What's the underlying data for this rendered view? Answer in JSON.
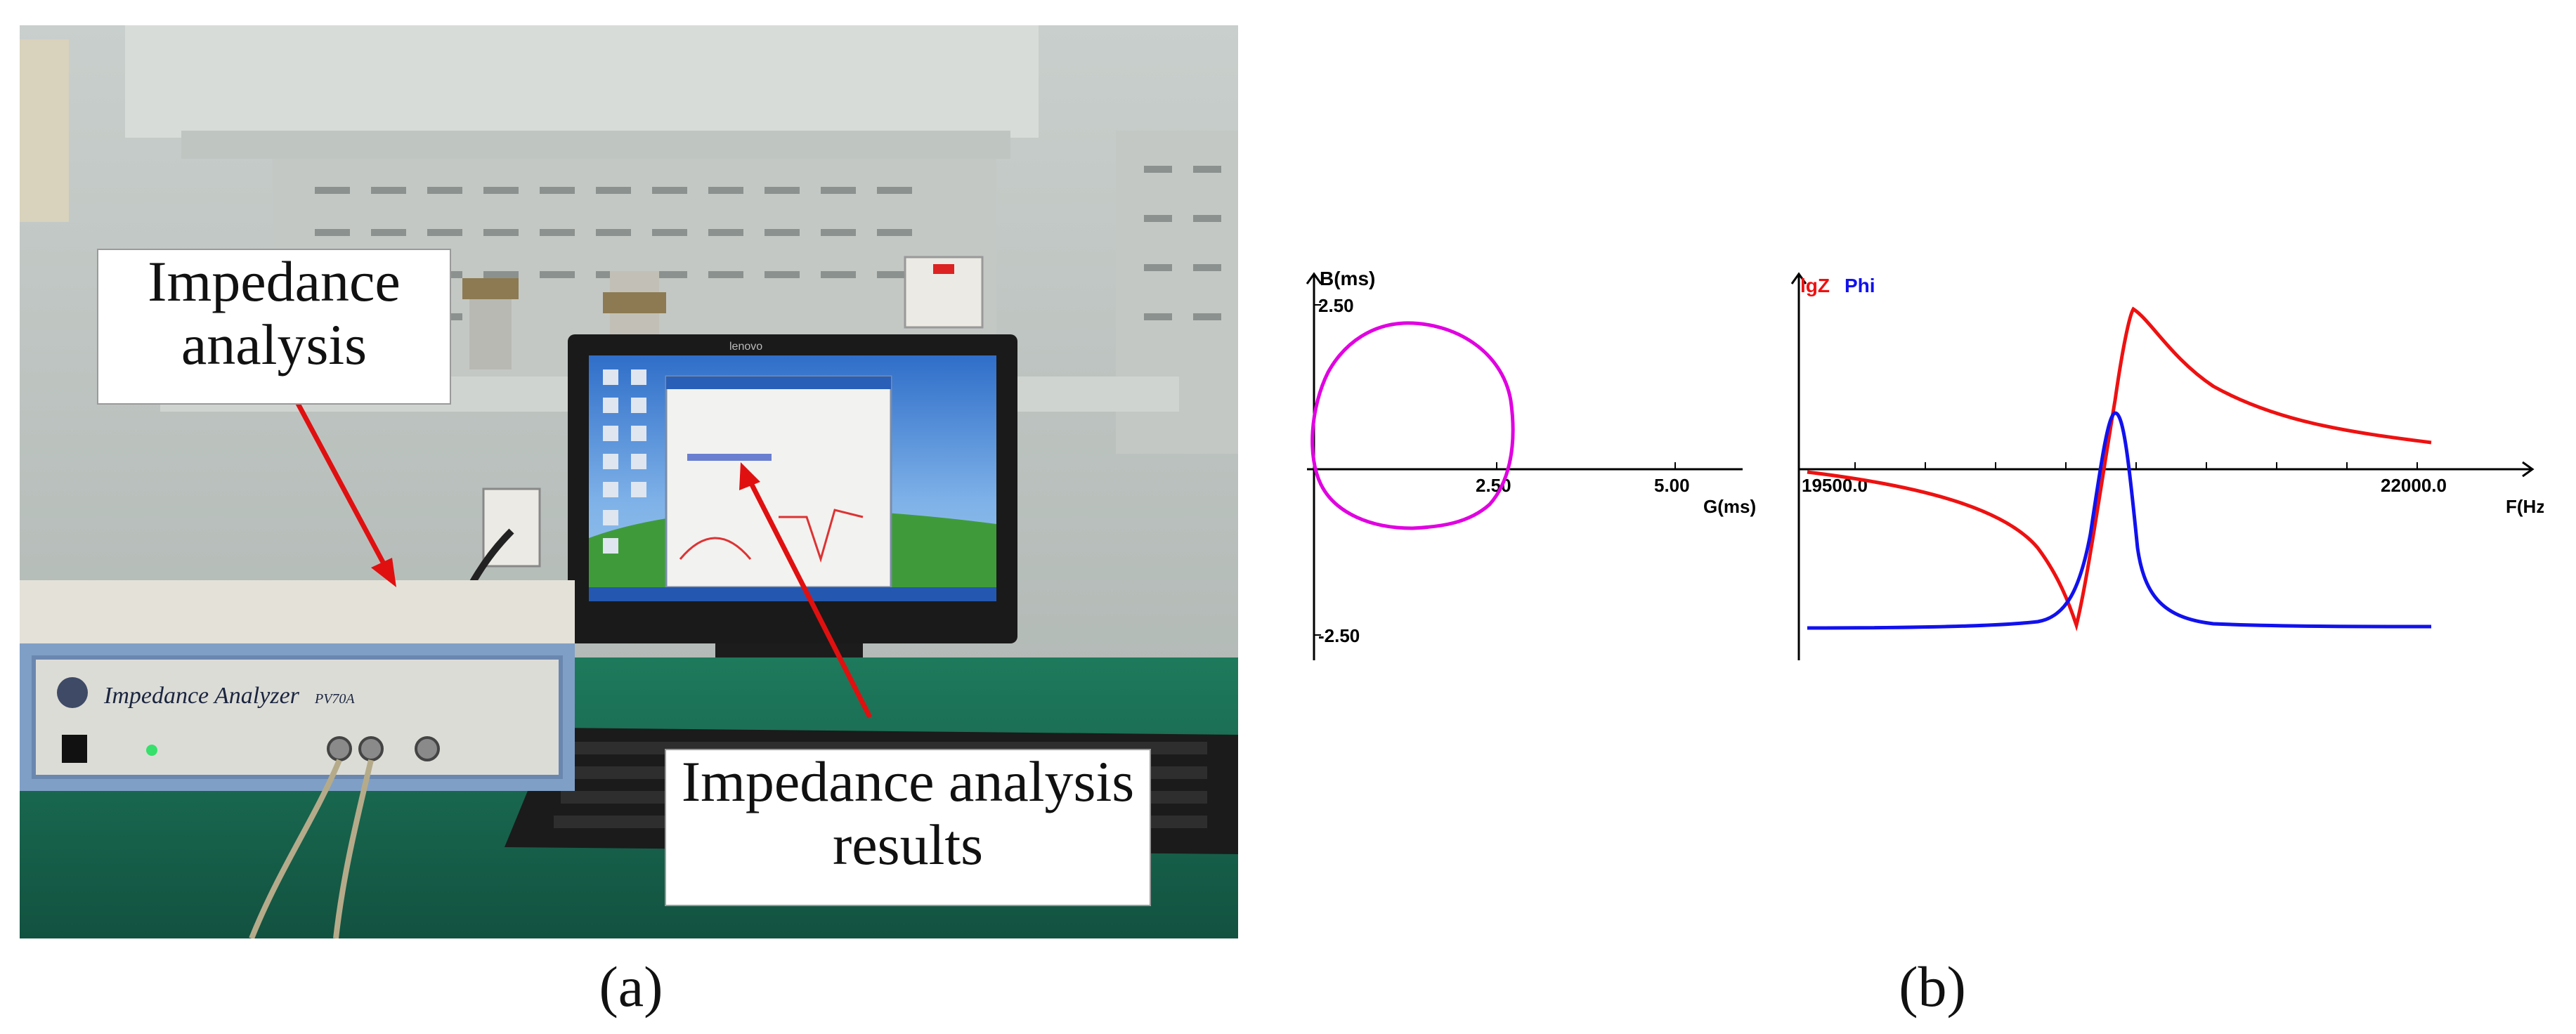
{
  "photo": {
    "callout_analysis": {
      "line1": "Impedance",
      "line2": "analysis"
    },
    "callout_results": {
      "line1": "Impedance analysis",
      "line2": "results"
    },
    "device_label": "Impedance Analyzer",
    "device_model": "PV70A",
    "monitor_brand": "lenovo"
  },
  "labels": {
    "a": "(a)",
    "b": "(b)"
  },
  "admittance_plot": {
    "ylabel": "B(ms)",
    "xlabel": "G(ms)",
    "xticks": [
      "2.50",
      "5.00"
    ],
    "yticks": [
      "2.50",
      "-2.50"
    ],
    "colors": {
      "circle": "#e000e0"
    }
  },
  "impedance_plot": {
    "legend_lgz": "lgZ",
    "legend_phi": "Phi",
    "xlabel": "F(Hz)",
    "xticks": [
      "19500.0",
      "22000.0"
    ],
    "colors": {
      "lgz": "#ee1111",
      "phi": "#1111ee"
    }
  }
}
